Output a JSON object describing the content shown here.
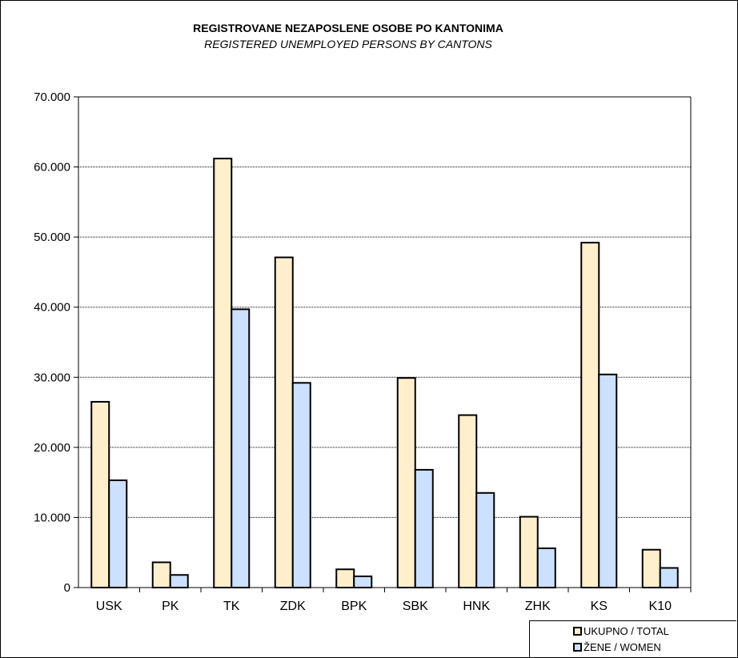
{
  "title": "REGISTROVANE NEZAPOSLENE OSOBE PO KANTONIMA",
  "subtitle": "REGISTERED UNEMPLOYED PERSONS BY CANTONS",
  "legend": [
    {
      "label": "UKUPNO  /  TOTAL",
      "color": "#ffefcc"
    },
    {
      "label": "ŽENE  / WOMEN",
      "color": "#cce0ff"
    }
  ],
  "chart_data": {
    "type": "bar",
    "title": "REGISTROVANE NEZAPOSLENE OSOBE PO KANTONIMA",
    "subtitle": "REGISTERED UNEMPLOYED PERSONS BY CANTONS",
    "categories": [
      "USK",
      "PK",
      "TK",
      "ZDK",
      "BPK",
      "SBK",
      "HNK",
      "ZHK",
      "KS",
      "K10"
    ],
    "series": [
      {
        "name": "UKUPNO  /  TOTAL",
        "color": "#ffefcc",
        "values": [
          26500,
          3600,
          61200,
          47100,
          2600,
          29900,
          24600,
          10100,
          49200,
          5400
        ]
      },
      {
        "name": "ŽENE  / WOMEN",
        "color": "#cce0ff",
        "values": [
          15300,
          1800,
          39700,
          29200,
          1600,
          16800,
          13500,
          5600,
          30400,
          2800
        ]
      }
    ],
    "ylim": [
      0,
      70000
    ],
    "yticks": [
      0,
      10000,
      20000,
      30000,
      40000,
      50000,
      60000,
      70000
    ],
    "ytick_labels": [
      "0",
      "10.000",
      "20.000",
      "30.000",
      "40.000",
      "50.000",
      "60.000",
      "70.000"
    ],
    "grid": true,
    "legend_position": "bottom-right"
  }
}
